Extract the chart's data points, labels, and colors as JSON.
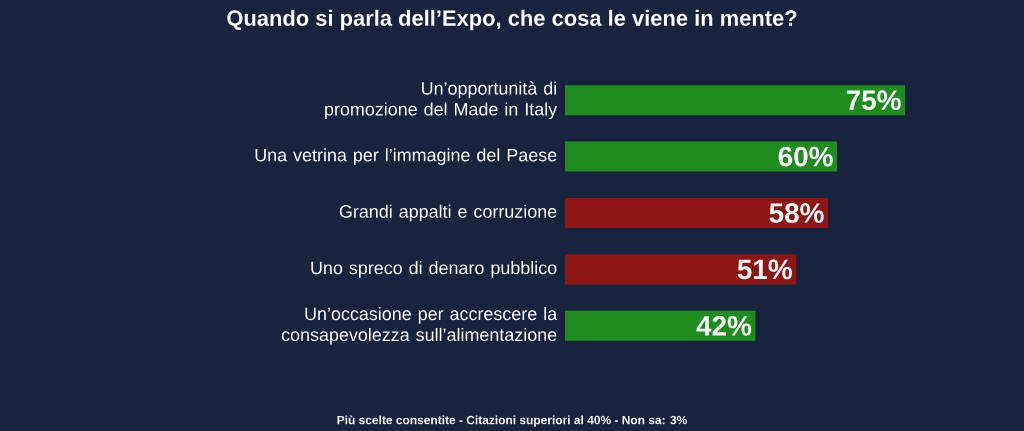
{
  "chart_data": {
    "type": "bar",
    "orientation": "horizontal",
    "title": "Quando si parla dell’Expo, che cosa le viene in mente?",
    "categories": [
      "Un’opportunità di promozione del Made in Italy",
      "Una vetrina per l’immagine del Paese",
      "Grandi appalti e corruzione",
      "Uno spreco di denaro pubblico",
      "Un’occasione per accrescere la consapevolezza sull’alimentazione"
    ],
    "values": [
      75,
      60,
      58,
      51,
      42
    ],
    "colors": [
      "#1e8c1e",
      "#1e8c1e",
      "#8e1414",
      "#8e1414",
      "#1e8c1e"
    ],
    "value_labels": [
      "75%",
      "60%",
      "58%",
      "51%",
      "42%"
    ],
    "annotations": [
      "Più scelte consentite - Citazioni superiori al 40% - Non sa: 3%"
    ]
  }
}
